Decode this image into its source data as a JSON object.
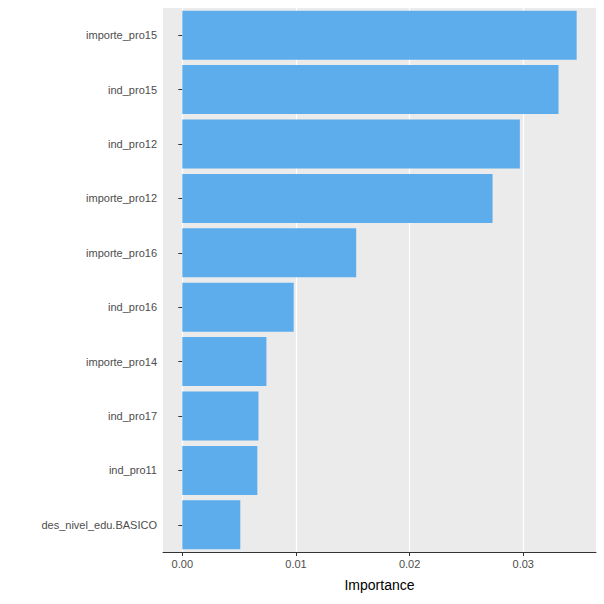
{
  "chart_data": {
    "type": "bar",
    "orientation": "horizontal",
    "x_label": "Importance",
    "categories": [
      "importe_pro15",
      "ind_pro15",
      "ind_pro12",
      "importe_pro12",
      "importe_pro16",
      "ind_pro16",
      "importe_pro14",
      "ind_pro17",
      "ind_pro11",
      "des_nivel_edu.BASICO"
    ],
    "values": [
      0.0347,
      0.0331,
      0.0297,
      0.0273,
      0.0153,
      0.0098,
      0.0074,
      0.0067,
      0.0066,
      0.0051
    ],
    "color": "#5DADEC",
    "xlim": [
      -0.0017,
      0.0364
    ],
    "xticks": [
      {
        "value": 0,
        "label": "0.00"
      },
      {
        "value": 0.01,
        "label": "0.01"
      },
      {
        "value": 0.02,
        "label": "0.02"
      },
      {
        "value": 0.03,
        "label": "0.03"
      }
    ],
    "grid": true
  }
}
